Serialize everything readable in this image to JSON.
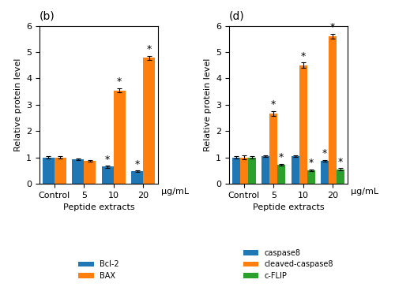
{
  "chart_data": [
    {
      "type": "bar",
      "title": "(b)",
      "categories": [
        "Control",
        "5",
        "10",
        "20"
      ],
      "series": [
        {
          "name": "Bcl-2",
          "values": [
            1.0,
            0.93,
            0.65,
            0.47
          ],
          "errors": [
            0.04,
            0.04,
            0.04,
            0.03
          ]
        },
        {
          "name": "BAX",
          "values": [
            1.0,
            0.87,
            3.55,
            4.78
          ],
          "errors": [
            0.04,
            0.04,
            0.08,
            0.08
          ]
        }
      ],
      "x_label": "Peptide extracts",
      "y_label": "Relative protein level",
      "ylim": [
        0,
        6
      ],
      "yticks": [
        0,
        1,
        2,
        3,
        4,
        5,
        6
      ],
      "legend": "lower center",
      "annotations": [
        {
          "text": "μg/mL"
        },
        {
          "text": "*",
          "series": "Bcl-2",
          "category": "10"
        },
        {
          "text": "*",
          "series": "Bcl-2",
          "category": "20"
        },
        {
          "text": "*",
          "series": "BAX",
          "category": "10"
        },
        {
          "text": "*",
          "series": "BAX",
          "category": "20"
        }
      ]
    },
    {
      "type": "bar",
      "title": "(d)",
      "categories": [
        "Control",
        "5",
        "10",
        "20"
      ],
      "series": [
        {
          "name": "caspase8",
          "values": [
            1.0,
            1.05,
            1.05,
            0.87
          ],
          "errors": [
            0.04,
            0.04,
            0.04,
            0.04
          ]
        },
        {
          "name": "cleaved-caspase8",
          "values": [
            1.0,
            2.68,
            4.5,
            5.6
          ],
          "errors": [
            0.07,
            0.09,
            0.1,
            0.1
          ]
        },
        {
          "name": "c-FLIP",
          "values": [
            1.0,
            0.72,
            0.52,
            0.55
          ],
          "errors": [
            0.04,
            0.04,
            0.03,
            0.04
          ]
        }
      ],
      "x_label": "Peptide extracts",
      "y_label": "Relative protein level",
      "ylim": [
        0,
        6
      ],
      "yticks": [
        0,
        1,
        2,
        3,
        4,
        5,
        6
      ],
      "legend": "lower center",
      "annotations": [
        {
          "text": "μg/mL"
        },
        {
          "text": "*",
          "series": "caspase8",
          "category": "20"
        },
        {
          "text": "*",
          "series": "cleaved-caspase8",
          "category": "5"
        },
        {
          "text": "*",
          "series": "cleaved-caspase8",
          "category": "10"
        },
        {
          "text": "*",
          "series": "cleaved-caspase8",
          "category": "20"
        },
        {
          "text": "*",
          "series": "c-FLIP",
          "category": "5"
        },
        {
          "text": "*",
          "series": "c-FLIP",
          "category": "10"
        },
        {
          "text": "*",
          "series": "c-FLIP",
          "category": "20"
        }
      ]
    }
  ]
}
